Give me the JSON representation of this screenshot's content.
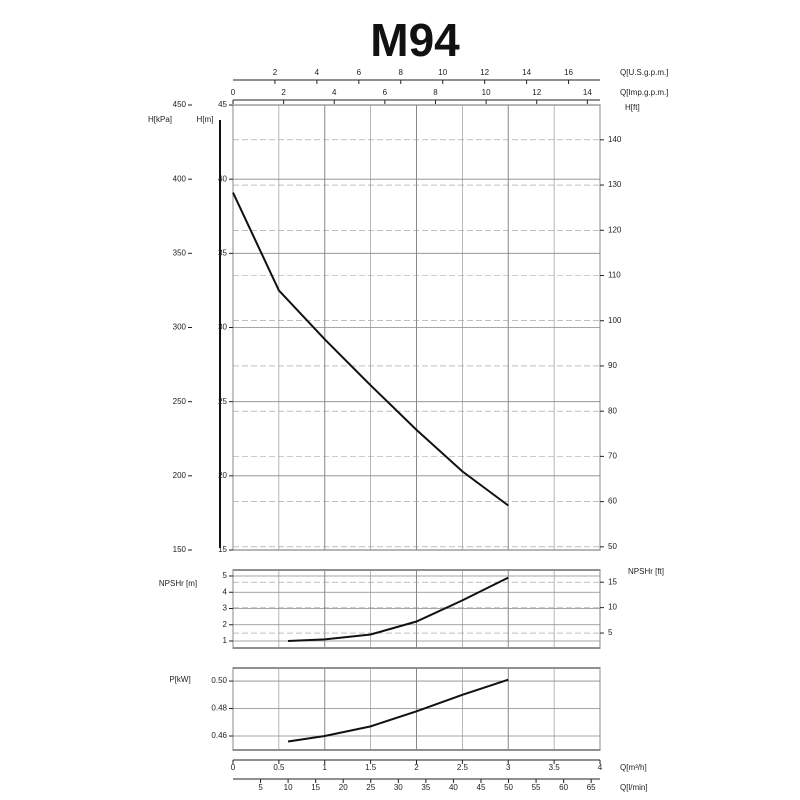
{
  "chart_data": [
    {
      "type": "line",
      "title": "M94",
      "top_axes": [
        {
          "label": "Q[U.S.g.p.m.]",
          "lim": [
            0,
            17.5
          ],
          "ticks": [
            2,
            4,
            6,
            8,
            10,
            12,
            14,
            16
          ]
        },
        {
          "label": "Q[Imp.g.p.m.]",
          "lim": [
            0,
            14.5
          ],
          "ticks": [
            0,
            2,
            4,
            6,
            8,
            10,
            12,
            14
          ]
        }
      ],
      "xlim": [
        0,
        4
      ],
      "xticks": [
        0,
        0.5,
        1,
        1.5,
        2,
        2.5,
        3,
        3.5,
        4
      ],
      "ylabel": "H[m]",
      "ylim": [
        15,
        45
      ],
      "yticks": [
        15,
        20,
        25,
        30,
        35,
        40,
        45
      ],
      "extra_y_axes": [
        {
          "label": "H[kPa]",
          "side": "outer-left",
          "lim": [
            150,
            450
          ],
          "ticks": [
            150,
            200,
            250,
            300,
            350,
            400,
            450
          ]
        },
        {
          "label": "H[ft]",
          "side": "right",
          "lim": [
            49.3,
            147.7
          ],
          "ticks": [
            50,
            60,
            70,
            80,
            90,
            100,
            110,
            120,
            130,
            140
          ]
        }
      ],
      "series": [
        {
          "color": "#111111",
          "x": [
            0,
            0.5,
            1,
            1.5,
            2,
            2.5,
            3
          ],
          "values": [
            39.1,
            32.5,
            29.2,
            26.1,
            23.1,
            20.3,
            18.0
          ]
        }
      ],
      "grid": true
    },
    {
      "type": "line",
      "xlim": [
        0,
        4
      ],
      "xticks": [
        0,
        0.5,
        1,
        1.5,
        2,
        2.5,
        3,
        3.5,
        4
      ],
      "ylabel": "NPSHr [m]",
      "ylim": [
        0.57,
        5.37
      ],
      "yticks": [
        1,
        2,
        3,
        4,
        5
      ],
      "extra_y_axes": [
        {
          "label": "NPSHr [ft]",
          "side": "right",
          "lim": [
            2.06,
            17.4
          ],
          "ticks": [
            5,
            10,
            15
          ]
        }
      ],
      "series": [
        {
          "color": "#111111",
          "x": [
            0.6,
            1,
            1.5,
            2,
            2.5,
            3
          ],
          "values": [
            1.0,
            1.1,
            1.4,
            2.2,
            3.5,
            4.9
          ]
        }
      ],
      "grid": true
    },
    {
      "type": "line",
      "xlabel": "Q[m³/h]",
      "xlim": [
        0,
        4
      ],
      "xticks": [
        0,
        0.5,
        1,
        1.5,
        2,
        2.5,
        3,
        3.5,
        4
      ],
      "bottom_axes": [
        {
          "label": "Q[l/min]",
          "lim": [
            0,
            66.6
          ],
          "ticks": [
            5,
            10,
            15,
            20,
            25,
            30,
            35,
            40,
            45,
            50,
            55,
            60,
            65
          ]
        }
      ],
      "ylabel": "P[kW]",
      "ylim": [
        0.4498,
        0.5095
      ],
      "yticks": [
        0.46,
        0.48,
        {
          "value": 0.5,
          "label": "0.50"
        }
      ],
      "series": [
        {
          "color": "#111111",
          "x": [
            0.6,
            1,
            1.5,
            2,
            2.5,
            3
          ],
          "values": [
            0.456,
            0.46,
            0.467,
            0.478,
            0.49,
            0.501
          ]
        }
      ],
      "grid": true
    }
  ]
}
